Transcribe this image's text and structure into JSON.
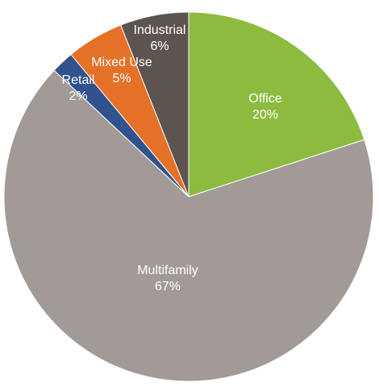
{
  "chart_data": {
    "type": "pie",
    "title": "",
    "start_angle_deg": 0,
    "direction": "clockwise",
    "slices": [
      {
        "name": "Office",
        "value": 20,
        "pct_label": "20%",
        "color": "#8dbb3f"
      },
      {
        "name": "Multifamily",
        "value": 67,
        "pct_label": "67%",
        "color": "#a29a96"
      },
      {
        "name": "Retail",
        "value": 2,
        "pct_label": "2%",
        "color": "#31528c"
      },
      {
        "name": "Mixed Use",
        "value": 5,
        "pct_label": "5%",
        "color": "#e57128"
      },
      {
        "name": "Industrial",
        "value": 6,
        "pct_label": "6%",
        "color": "#5d544f"
      }
    ],
    "legend": "none"
  }
}
